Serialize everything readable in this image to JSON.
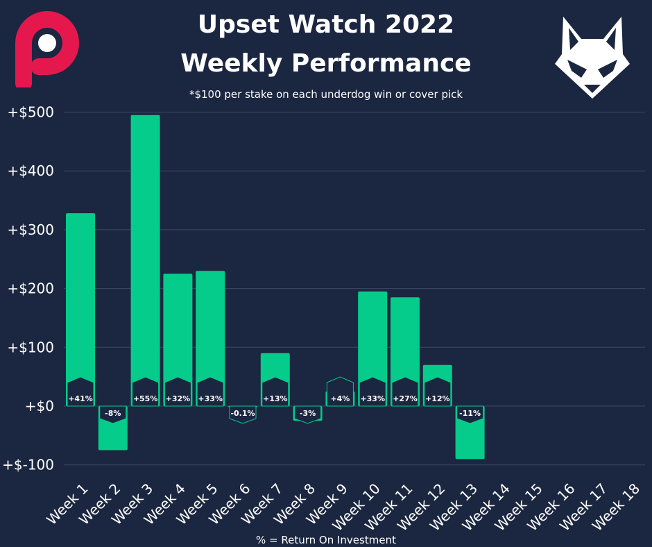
{
  "header": {
    "title_line1": "Upset Watch 2022",
    "title_line2": "Weekly Performance",
    "subtitle": "*$100 per stake on each underdog win or cover pick"
  },
  "footer": {
    "note": "% = Return On Investment"
  },
  "logos": {
    "left": "p-logo-icon",
    "right": "wolf-logo-icon"
  },
  "colors": {
    "background": "#1b2640",
    "bar": "#05cc8a",
    "grid": "#3d4a66",
    "text": "#ffffff"
  },
  "chart_data": {
    "type": "bar",
    "title": "Upset Watch 2022 Weekly Performance",
    "categories": [
      "Week 1",
      "Week 2",
      "Week 3",
      "Week 4",
      "Week 5",
      "Week 6",
      "Week 7",
      "Week 8",
      "Week 9",
      "Week 10",
      "Week 11",
      "Week 12",
      "Week 13",
      "Week 14",
      "Week 15",
      "Week 16",
      "Week 17",
      "Week 18"
    ],
    "values": [
      328,
      -75,
      495,
      225,
      230,
      -1,
      90,
      -25,
      25,
      195,
      185,
      70,
      -90,
      null,
      null,
      null,
      null,
      null
    ],
    "roi_labels": [
      "+41%",
      "-8%",
      "+55%",
      "+32%",
      "+33%",
      "-0.1%",
      "+13%",
      "-3%",
      "+4%",
      "+33%",
      "+27%",
      "+12%",
      "-11%",
      "",
      "",
      "",
      "",
      ""
    ],
    "y_ticks": [
      -100,
      0,
      100,
      200,
      300,
      400,
      500
    ],
    "y_tick_labels": [
      "+$-100",
      "+$0",
      "+$100",
      "+$200",
      "+$300",
      "+$400",
      "+$500"
    ],
    "ylim": [
      -100,
      500
    ],
    "grid": true
  }
}
